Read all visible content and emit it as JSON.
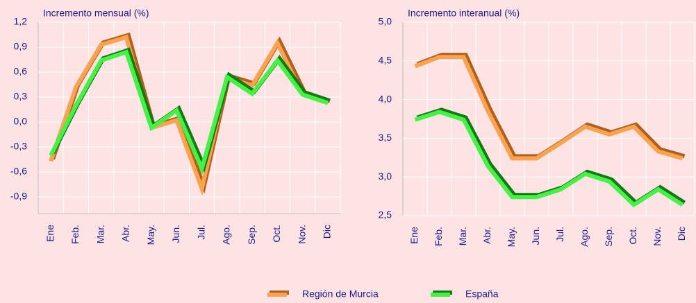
{
  "chart_data": [
    {
      "type": "line",
      "title": "Incremento mensual (%)",
      "categories": [
        "Ene",
        "Feb.",
        "Mar.",
        "Abr.",
        "May.",
        "Jun.",
        "Jul.",
        "Ago.",
        "Sep.",
        "Oct.",
        "Nov.",
        "Dic"
      ],
      "series": [
        {
          "name": "Región de Murcia",
          "color": "#f9a250",
          "shadow_color": "#b0601a",
          "values": [
            -0.47,
            0.42,
            0.93,
            1.02,
            -0.07,
            0.02,
            -0.8,
            0.53,
            0.44,
            0.95,
            0.33,
            0.23
          ]
        },
        {
          "name": "España",
          "color": "#46f046",
          "shadow_color": "#137a13",
          "values": [
            -0.4,
            0.2,
            0.74,
            0.84,
            -0.07,
            0.14,
            -0.56,
            0.54,
            0.34,
            0.74,
            0.33,
            0.23
          ]
        }
      ],
      "ylim": [
        -1.1,
        1.2
      ],
      "yticks": [
        {
          "value": -0.9,
          "label": "-0,9"
        },
        {
          "value": -0.6,
          "label": "-0,6"
        },
        {
          "value": -0.3,
          "label": "-0,3"
        },
        {
          "value": 0,
          "label": "0,0"
        },
        {
          "value": 0.3,
          "label": "0,3"
        },
        {
          "value": 0.6,
          "label": "0,6"
        },
        {
          "value": 0.9,
          "label": "0,9"
        },
        {
          "value": 1.2,
          "label": "1,2"
        }
      ],
      "grid": true
    },
    {
      "type": "line",
      "title": "Incremento interanual (%)",
      "categories": [
        "Ene",
        "Feb.",
        "Mar.",
        "Abr.",
        "May.",
        "Jun.",
        "Jul.",
        "Ago.",
        "Sep.",
        "Oct.",
        "Nov.",
        "Dic"
      ],
      "series": [
        {
          "name": "Región de Murcia",
          "color": "#f9a250",
          "shadow_color": "#b0601a",
          "values": [
            4.43,
            4.55,
            4.55,
            3.85,
            3.24,
            3.24,
            3.44,
            3.65,
            3.55,
            3.65,
            3.33,
            3.24
          ]
        },
        {
          "name": "España",
          "color": "#46f046",
          "shadow_color": "#137a13",
          "values": [
            3.74,
            3.84,
            3.74,
            3.14,
            2.74,
            2.74,
            2.84,
            3.04,
            2.94,
            2.64,
            2.84,
            2.64
          ]
        }
      ],
      "ylim": [
        2.5,
        5.0
      ],
      "yticks": [
        {
          "value": 2.5,
          "label": "2,5"
        },
        {
          "value": 3.0,
          "label": "3,0"
        },
        {
          "value": 3.5,
          "label": "3,5"
        },
        {
          "value": 4.0,
          "label": "4,0"
        },
        {
          "value": 4.5,
          "label": "4,5"
        },
        {
          "value": 5.0,
          "label": "5,0"
        }
      ],
      "grid": true
    }
  ]
}
